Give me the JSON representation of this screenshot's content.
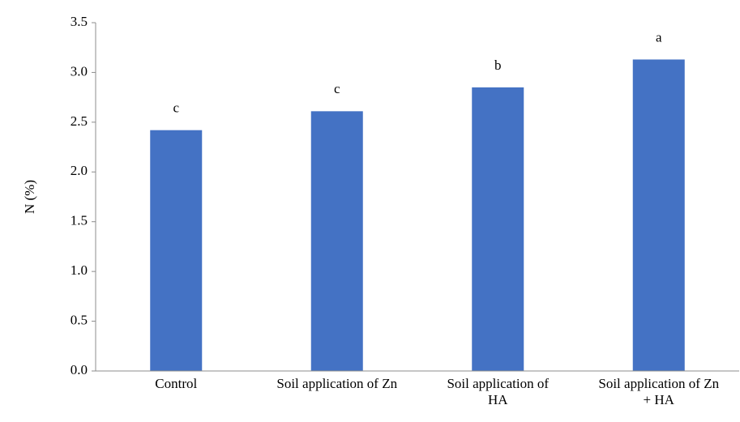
{
  "chart_data": {
    "type": "bar",
    "y_label": "N (%)",
    "categories": [
      "Control",
      "Soil application of Zn",
      "Soil application of HA",
      "Soil application of Zn + HA"
    ],
    "values": [
      2.42,
      2.61,
      2.85,
      3.13
    ],
    "letters": [
      "c",
      "c",
      "b",
      "a"
    ],
    "color": "#4472c4",
    "ylim": [
      0,
      3.5
    ],
    "yticks": [
      {
        "value": 0,
        "label": "0.0"
      },
      0.5,
      {
        "value": 1,
        "label": "1.0"
      },
      1.5,
      {
        "value": 2,
        "label": "2.0"
      },
      2.5,
      {
        "value": 3,
        "label": "3.0"
      },
      3.5
    ],
    "grid": false
  }
}
